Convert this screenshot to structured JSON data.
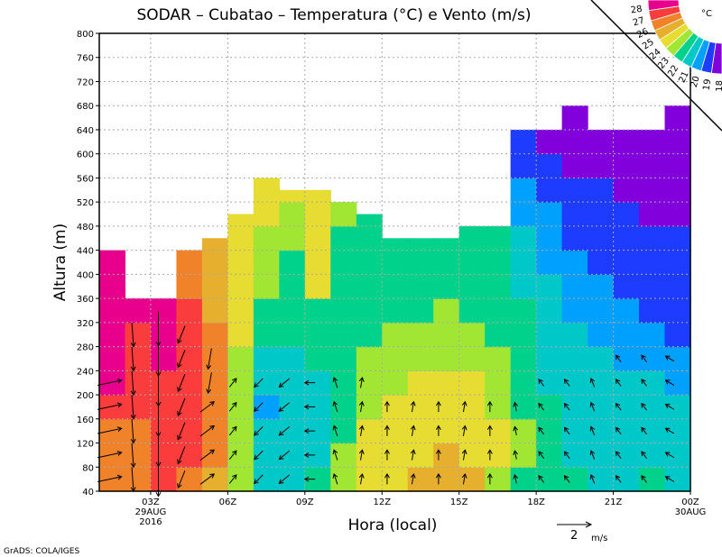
{
  "chart_data": {
    "type": "heatmap",
    "title": "SODAR – Cubatao – Temperatura (°C) e Vento (m/s)",
    "xlabel": "Hora (local)",
    "ylabel": "Altura (m)",
    "footer": "GrADS: COLA/IGES",
    "xlim_hours": [
      1,
      24
    ],
    "ylim": [
      40,
      800
    ],
    "y_ticks": [
      40,
      80,
      120,
      160,
      200,
      240,
      280,
      320,
      360,
      400,
      440,
      480,
      520,
      560,
      600,
      640,
      680,
      720,
      760,
      800
    ],
    "x_ticks": [
      {
        "hour": 3,
        "label": "03Z",
        "sub1": "29AUG",
        "sub2": "2016"
      },
      {
        "hour": 6,
        "label": "06Z"
      },
      {
        "hour": 9,
        "label": "09Z"
      },
      {
        "hour": 12,
        "label": "12Z"
      },
      {
        "hour": 15,
        "label": "15Z"
      },
      {
        "hour": 18,
        "label": "18Z"
      },
      {
        "hour": 21,
        "label": "21Z"
      },
      {
        "hour": 24,
        "label": "00Z",
        "sub1": "30AUG"
      }
    ],
    "grid": true,
    "level_step_m": 40,
    "temperature_columns": [
      {
        "hour_start": 1,
        "top_m": 440,
        "values": [
          26,
          26,
          26,
          27,
          28,
          28,
          28,
          28,
          28,
          28
        ]
      },
      {
        "hour_start": 2,
        "top_m": 360,
        "values": [
          26,
          26,
          26,
          27,
          27,
          27,
          27,
          28
        ]
      },
      {
        "hour_start": 3,
        "top_m": 360,
        "values": [
          27,
          27,
          27,
          27,
          27,
          28,
          28,
          28
        ]
      },
      {
        "hour_start": 4,
        "top_m": 440,
        "values": [
          26,
          27,
          27,
          27,
          27,
          27,
          27,
          27,
          26,
          26
        ]
      },
      {
        "hour_start": 5,
        "top_m": 460,
        "values": [
          25,
          26,
          26,
          26,
          26,
          26,
          26,
          25,
          25,
          25,
          25
        ]
      },
      {
        "hour_start": 6,
        "top_m": 500,
        "values": [
          23,
          23,
          23,
          23,
          23,
          23,
          24,
          24,
          24,
          24,
          24,
          24
        ]
      },
      {
        "hour_start": 7,
        "top_m": 560,
        "values": [
          21,
          21,
          21,
          20,
          21,
          21,
          22,
          22,
          23,
          23,
          23,
          24,
          24
        ]
      },
      {
        "hour_start": 8,
        "top_m": 540,
        "values": [
          21,
          21,
          21,
          21,
          21,
          21,
          22,
          22,
          22,
          22,
          23,
          23,
          24
        ]
      },
      {
        "hour_start": 9,
        "top_m": 540,
        "values": [
          22,
          21,
          21,
          21,
          21,
          22,
          22,
          22,
          24,
          24,
          24,
          24,
          24
        ]
      },
      {
        "hour_start": 10,
        "top_m": 520,
        "values": [
          23,
          23,
          22,
          22,
          22,
          22,
          22,
          22,
          22,
          22,
          22,
          23
        ]
      },
      {
        "hour_start": 11,
        "top_m": 500,
        "values": [
          24,
          24,
          24,
          23,
          23,
          23,
          22,
          22,
          22,
          22,
          22,
          22
        ]
      },
      {
        "hour_start": 12,
        "top_m": 460,
        "values": [
          24,
          24,
          24,
          24,
          23,
          23,
          23,
          22,
          22,
          22,
          22
        ]
      },
      {
        "hour_start": 13,
        "top_m": 460,
        "values": [
          25,
          24,
          24,
          24,
          24,
          23,
          23,
          22,
          22,
          22,
          22
        ]
      },
      {
        "hour_start": 14,
        "top_m": 460,
        "values": [
          25,
          25,
          24,
          24,
          24,
          23,
          23,
          23,
          22,
          22,
          22
        ]
      },
      {
        "hour_start": 15,
        "top_m": 480,
        "values": [
          25,
          24,
          24,
          24,
          24,
          23,
          23,
          22,
          22,
          22,
          22
        ]
      },
      {
        "hour_start": 16,
        "top_m": 480,
        "values": [
          23,
          24,
          24,
          23,
          23,
          23,
          22,
          22,
          22,
          22,
          22
        ]
      },
      {
        "hour_start": 17,
        "top_m": 640,
        "values": [
          22,
          23,
          23,
          22,
          22,
          22,
          22,
          22,
          21,
          21,
          21,
          20,
          20,
          19,
          19
        ]
      },
      {
        "hour_start": 18,
        "top_m": 640,
        "values": [
          22,
          22,
          22,
          22,
          21,
          21,
          21,
          21,
          21,
          20,
          20,
          20,
          19,
          19,
          18
        ]
      },
      {
        "hour_start": 19,
        "top_m": 680,
        "values": [
          22,
          21,
          21,
          21,
          21,
          21,
          21,
          20,
          20,
          20,
          19,
          19,
          19,
          18,
          18,
          18
        ]
      },
      {
        "hour_start": 20,
        "top_m": 640,
        "values": [
          21,
          21,
          21,
          21,
          21,
          21,
          20,
          20,
          20,
          19,
          19,
          19,
          19,
          18,
          18
        ]
      },
      {
        "hour_start": 21,
        "top_m": 640,
        "values": [
          21,
          21,
          21,
          21,
          21,
          20,
          20,
          20,
          19,
          19,
          19,
          19,
          18,
          18,
          18
        ]
      },
      {
        "hour_start": 22,
        "top_m": 640,
        "values": [
          22,
          21,
          21,
          21,
          21,
          20,
          20,
          19,
          19,
          19,
          19,
          18,
          18,
          18,
          18
        ]
      },
      {
        "hour_start": 23,
        "top_m": 680,
        "values": [
          21,
          21,
          21,
          21,
          20,
          20,
          19,
          19,
          19,
          19,
          19,
          18,
          18,
          18,
          18,
          18
        ]
      }
    ],
    "wind_columns": [
      {
        "hour": 1.4,
        "u": 1.4,
        "v": 0.3,
        "z": [
          60,
          100,
          140,
          180,
          220
        ]
      },
      {
        "hour": 2.3,
        "u": 0.1,
        "v": -1.4,
        "z": [
          60,
          100,
          140,
          180,
          220,
          260,
          300
        ]
      },
      {
        "hour": 3.3,
        "u": 0.0,
        "v": -2.0,
        "z": [
          60,
          110,
          160,
          210,
          260,
          310
        ]
      },
      {
        "hour": 4.2,
        "u": -0.4,
        "v": -1.0,
        "z": [
          60,
          100,
          140,
          180,
          220,
          260,
          300
        ]
      },
      {
        "hour": 5.2,
        "u": 0.8,
        "v": 0.6,
        "z": [
          60,
          100,
          140,
          180
        ]
      },
      {
        "hour": 5.3,
        "u": -0.2,
        "v": -1.2,
        "z": [
          220,
          260
        ]
      },
      {
        "hour": 6.2,
        "u": 0.4,
        "v": 0.5,
        "z": [
          60,
          100,
          140,
          180,
          220
        ]
      },
      {
        "hour": 7.2,
        "u": -0.5,
        "v": -0.5,
        "z": [
          60,
          100,
          140,
          180,
          220
        ]
      },
      {
        "hour": 8.2,
        "u": -0.6,
        "v": -0.5,
        "z": [
          60,
          100,
          140,
          180,
          220
        ]
      },
      {
        "hour": 9.2,
        "u": -0.6,
        "v": 0.0,
        "z": [
          60,
          100,
          140,
          180,
          220
        ]
      },
      {
        "hour": 10.2,
        "u": -0.2,
        "v": 0.6,
        "z": [
          60,
          100,
          140,
          180,
          220
        ]
      },
      {
        "hour": 11.2,
        "u": 0.1,
        "v": 0.6,
        "z": [
          60,
          100,
          140,
          180,
          220
        ]
      },
      {
        "hour": 12.2,
        "u": 0.0,
        "v": 0.6,
        "z": [
          60,
          100,
          140,
          180
        ]
      },
      {
        "hour": 13.2,
        "u": 0.1,
        "v": 0.6,
        "z": [
          60,
          100,
          140,
          180
        ]
      },
      {
        "hour": 14.2,
        "u": 0.0,
        "v": 0.6,
        "z": [
          60,
          100,
          140,
          180
        ]
      },
      {
        "hour": 15.2,
        "u": 0.1,
        "v": 0.6,
        "z": [
          60,
          100,
          140,
          180
        ]
      },
      {
        "hour": 16.2,
        "u": 0.0,
        "v": 0.6,
        "z": [
          60,
          100,
          140,
          180
        ]
      },
      {
        "hour": 17.2,
        "u": -0.1,
        "v": 0.5,
        "z": [
          60,
          100,
          140,
          180
        ]
      },
      {
        "hour": 18.2,
        "u": -0.3,
        "v": 0.4,
        "z": [
          60,
          100,
          140,
          180,
          220
        ]
      },
      {
        "hour": 19.2,
        "u": -0.3,
        "v": 0.4,
        "z": [
          60,
          100,
          140,
          180,
          220
        ]
      },
      {
        "hour": 20.2,
        "u": -0.2,
        "v": 0.5,
        "z": [
          60,
          100,
          140,
          180,
          220
        ]
      },
      {
        "hour": 21.2,
        "u": -0.3,
        "v": 0.4,
        "z": [
          60,
          100,
          140,
          180,
          220,
          260
        ]
      },
      {
        "hour": 22.2,
        "u": -0.3,
        "v": 0.4,
        "z": [
          60,
          100,
          140,
          180,
          220,
          260
        ]
      },
      {
        "hour": 23.2,
        "u": -0.5,
        "v": 0.3,
        "z": [
          60,
          100,
          140,
          180,
          220,
          260
        ]
      }
    ],
    "wind_reference": {
      "value": 2,
      "label": "2",
      "unit": "m/s"
    },
    "colorbar": {
      "unit": "°C",
      "levels": [
        "28",
        "27",
        "26",
        "25",
        "24",
        "23",
        "22",
        "21",
        "20",
        "19",
        "18"
      ],
      "colors": [
        "#e8008c",
        "#fa3c3c",
        "#f0822a",
        "#e6af2d",
        "#e6dc32",
        "#a0e632",
        "#00d28c",
        "#00c8c8",
        "#00a0ff",
        "#1e3cff",
        "#8200dc"
      ]
    },
    "value_colors": {
      "28": "#e8008c",
      "27": "#fa3c3c",
      "26": "#f0822a",
      "25": "#e6af2d",
      "24": "#e6dc32",
      "23": "#a0e632",
      "22": "#00d28c",
      "21": "#00c8c8",
      "20": "#00a0ff",
      "19": "#1e3cff",
      "18": "#8200dc"
    }
  }
}
